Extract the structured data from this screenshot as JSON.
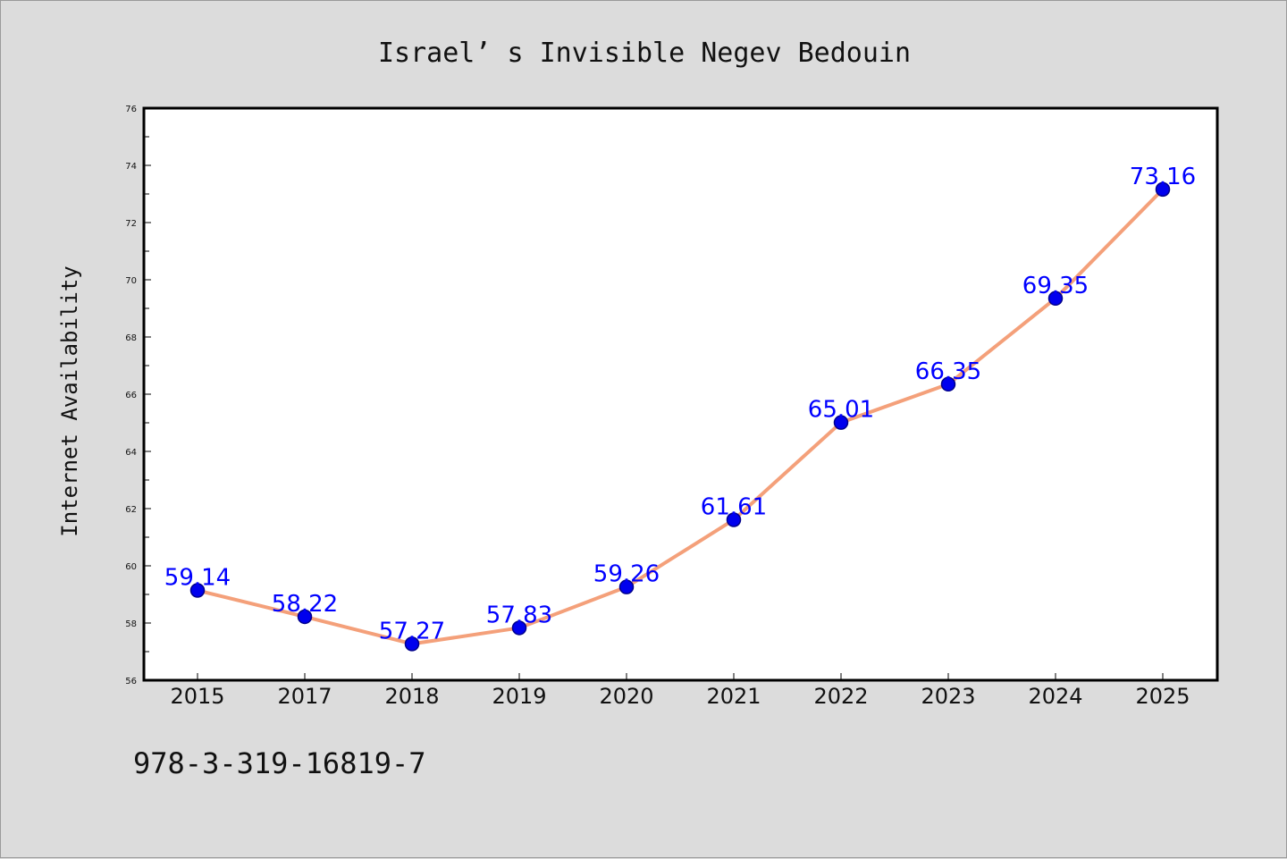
{
  "chart_data": {
    "type": "line",
    "title": "Israel’ s Invisible Negev Bedouin",
    "xlabel": "",
    "ylabel": "Internet Availability",
    "categories": [
      "2015",
      "2017",
      "2018",
      "2019",
      "2020",
      "2021",
      "2022",
      "2023",
      "2024",
      "2025"
    ],
    "values": [
      59.14,
      58.22,
      57.27,
      57.83,
      59.26,
      61.61,
      65.01,
      66.35,
      69.35,
      73.16
    ],
    "value_labels": [
      "59.14",
      "58.22",
      "57.27",
      "57.83",
      "59.26",
      "61.61",
      "65.01",
      "66.35",
      "69.35",
      "73.16"
    ],
    "ylim": [
      56,
      76
    ],
    "yticks": [
      "56",
      "58",
      "60",
      "62",
      "64",
      "66",
      "68",
      "70",
      "72",
      "74",
      "76"
    ],
    "grid": false,
    "legend": "none",
    "colors": {
      "line": "#f4a07a",
      "marker_fill": "#0000ee",
      "marker_stroke": "#00008b",
      "data_label": "#0000ff",
      "background": "#dcdcdc",
      "plot_background": "#ffffff"
    }
  },
  "footer": {
    "isbn": "978-3-319-16819-7"
  }
}
